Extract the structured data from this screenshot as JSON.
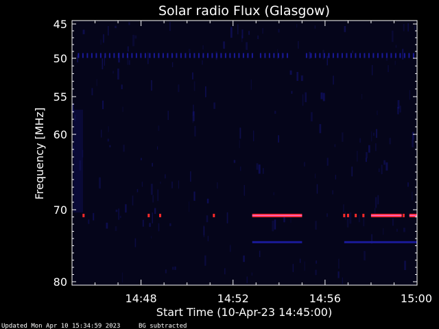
{
  "chart_data": {
    "type": "heatmap",
    "title": "Solar radio Flux (Glasgow)",
    "xlabel": "Start Time (10-Apr-23 14:45:00)",
    "ylabel": "Frequency [MHz]",
    "x_range": [
      "14:45:00",
      "15:00:00"
    ],
    "y_range_mhz": [
      45,
      80
    ],
    "x_ticks": [
      "14:48",
      "14:52",
      "14:56",
      "15:00"
    ],
    "y_ticks": [
      45,
      50,
      55,
      60,
      70,
      80
    ],
    "grid": false,
    "colors": {
      "background": "#000000",
      "axes": "#ffffff",
      "field": "#05051a",
      "low_intensity": "#1a1a9a",
      "high_intensity": "#ff2a2a",
      "peak": "#ff6ad0"
    },
    "bands": [
      {
        "frequency_mhz": 49.5,
        "intensity": "low",
        "pattern": "dashed",
        "spans": [
          [
            "14:45:15",
            "14:53:00"
          ],
          [
            "14:53:10",
            "14:54:20"
          ],
          [
            "14:55:10",
            "15:00:00"
          ]
        ]
      },
      {
        "frequency_mhz": 70.8,
        "intensity": "high",
        "pattern": "solid",
        "spans": [
          [
            "14:52:50",
            "14:55:00"
          ],
          [
            "14:58:00",
            "14:59:20"
          ],
          [
            "14:59:40",
            "15:00:00"
          ]
        ]
      },
      {
        "frequency_mhz": 70.8,
        "intensity": "high",
        "pattern": "dots",
        "times": [
          "14:45:30",
          "14:48:20",
          "14:48:50",
          "14:51:10",
          "14:56:50",
          "14:57:00",
          "14:57:20",
          "14:57:40",
          "14:59:25"
        ]
      },
      {
        "frequency_mhz": 74.5,
        "intensity": "low",
        "pattern": "solid",
        "spans": [
          [
            "14:52:50",
            "14:55:00"
          ],
          [
            "14:56:50",
            "15:00:00"
          ]
        ]
      }
    ]
  },
  "footer": {
    "updated": "Updated Mon Apr 10 15:34:59 2023",
    "note": "BG subtracted"
  }
}
